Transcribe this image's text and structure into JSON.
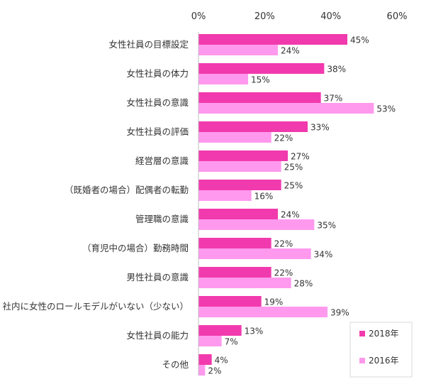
{
  "chart_data": {
    "type": "bar",
    "orientation": "horizontal",
    "title": "",
    "xlabel": "",
    "ylabel": "",
    "xlim": [
      0,
      60
    ],
    "x_ticks": [
      "0%",
      "20%",
      "40%",
      "60%"
    ],
    "grid": false,
    "legend_position": "bottom-right",
    "categories": [
      "女性社員の目標設定",
      "女性社員の体力",
      "女性社員の意識",
      "女性社員の評価",
      "経営層の意識",
      "（既婚者の場合）配偶者の転勤",
      "管理職の意識",
      "（育児中の場合）勤務時間",
      "男性社員の意識",
      "社内に女性のロールモデルがいない（少ない）",
      "女性社員の能力",
      "その他"
    ],
    "series": [
      {
        "name": "2018年",
        "color": "#f13aad",
        "values": [
          45,
          38,
          37,
          33,
          27,
          25,
          24,
          22,
          22,
          19,
          13,
          4
        ],
        "labels": [
          "45%",
          "38%",
          "37%",
          "33%",
          "27%",
          "25%",
          "24%",
          "22%",
          "22%",
          "19%",
          "13%",
          "4%"
        ]
      },
      {
        "name": "2016年",
        "color": "#ff99ee",
        "values": [
          24,
          15,
          53,
          22,
          25,
          16,
          35,
          34,
          28,
          39,
          7,
          2
        ],
        "labels": [
          "24%",
          "15%",
          "53%",
          "22%",
          "25%",
          "16%",
          "35%",
          "34%",
          "28%",
          "39%",
          "7%",
          "2%"
        ]
      }
    ]
  }
}
